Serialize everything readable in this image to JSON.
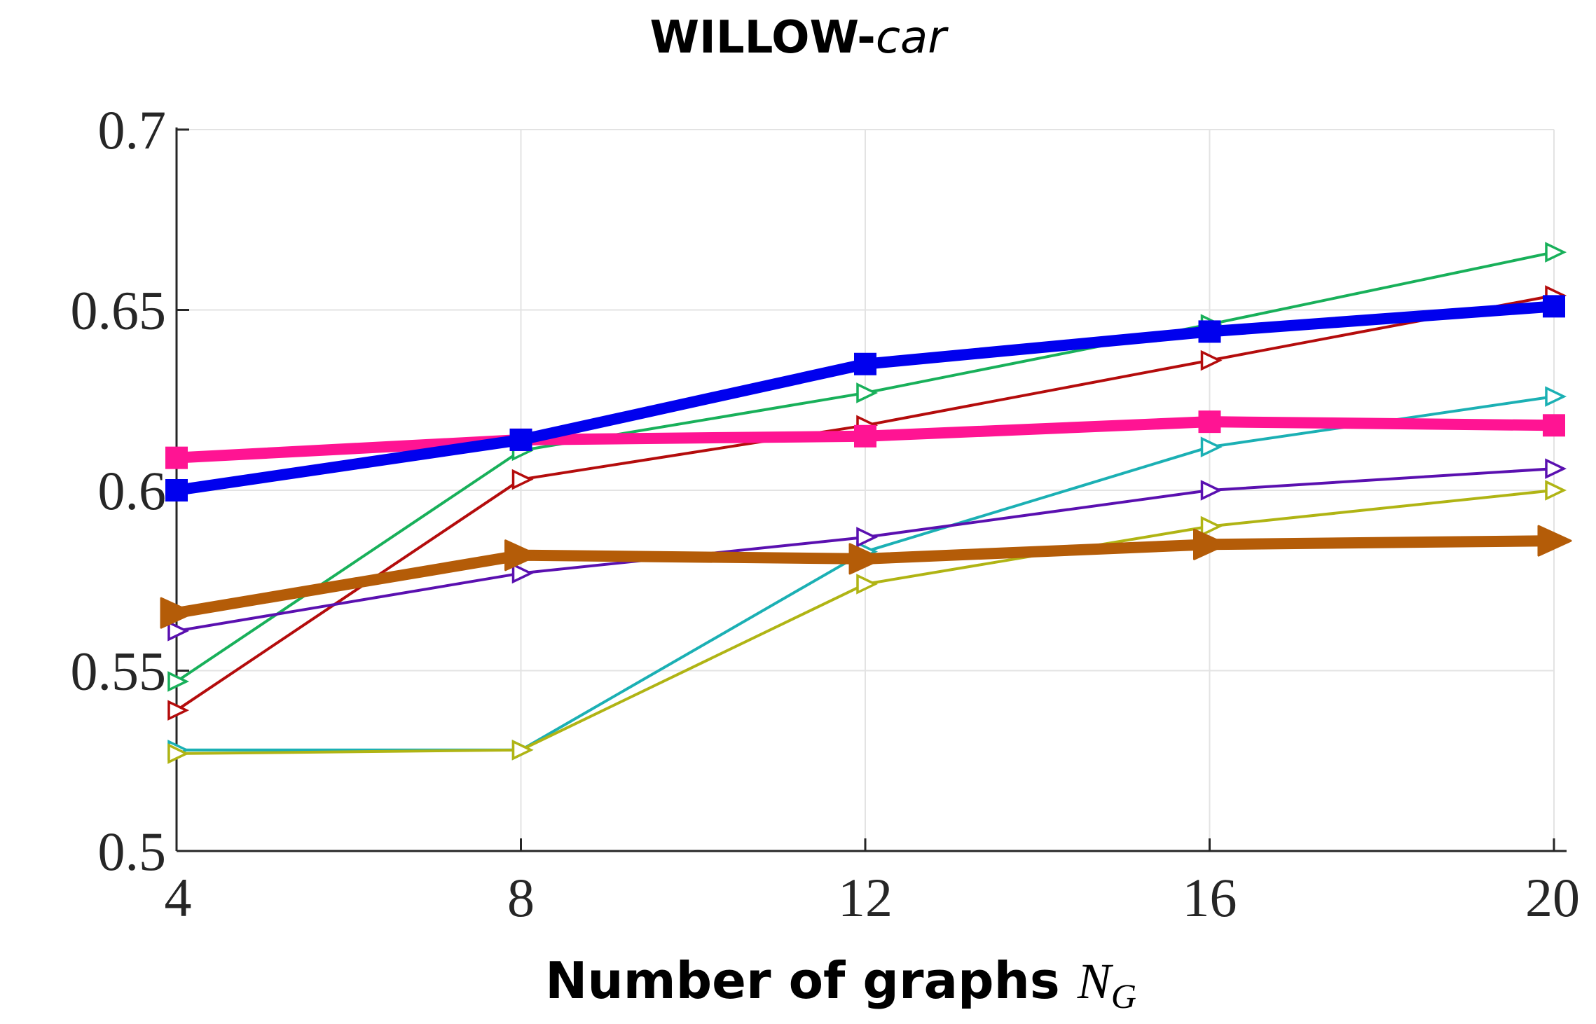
{
  "chart_data": {
    "type": "line",
    "title": "WILLOW-",
    "title_italic": "car",
    "xlabel": "Number of graphs ",
    "xlabel_symbol": "N",
    "xlabel_subscript": "G",
    "ylabel": "",
    "x": [
      4,
      8,
      12,
      16,
      20
    ],
    "xticks": [
      "4",
      "8",
      "12",
      "16",
      "20"
    ],
    "yticks": [
      "0.5",
      "0.55",
      "0.6",
      "0.65",
      "0.7"
    ],
    "ytick_values": [
      0.5,
      0.55,
      0.6,
      0.65,
      0.7
    ],
    "xlim": [
      4,
      20
    ],
    "ylim": [
      0.5,
      0.7
    ],
    "grid": true,
    "series": [
      {
        "name": "series-green",
        "color": "#18b05a",
        "marker": "triangle-right-open",
        "weight": "thin",
        "values": [
          0.547,
          0.611,
          0.627,
          0.646,
          0.666
        ]
      },
      {
        "name": "series-red",
        "color": "#b40c0c",
        "marker": "triangle-right-open",
        "weight": "thin",
        "values": [
          0.539,
          0.603,
          0.618,
          0.636,
          0.654
        ]
      },
      {
        "name": "series-cyan",
        "color": "#1bb0b4",
        "marker": "triangle-right-open",
        "weight": "thin",
        "values": [
          0.528,
          0.528,
          0.583,
          0.612,
          0.626
        ]
      },
      {
        "name": "series-purple",
        "color": "#5a10b0",
        "marker": "triangle-right-open",
        "weight": "thin",
        "values": [
          0.561,
          0.577,
          0.587,
          0.6,
          0.606
        ]
      },
      {
        "name": "series-olive",
        "color": "#b0b414",
        "marker": "triangle-right-open",
        "weight": "thin",
        "values": [
          0.527,
          0.528,
          0.574,
          0.59,
          0.6
        ]
      },
      {
        "name": "series-orange",
        "color": "#b45c08",
        "marker": "triangle-right-filled",
        "weight": "thick",
        "values": [
          0.566,
          0.582,
          0.581,
          0.585,
          0.586
        ]
      },
      {
        "name": "series-pink",
        "color": "#ff1493",
        "marker": "square-filled",
        "weight": "thick",
        "values": [
          0.609,
          0.614,
          0.615,
          0.619,
          0.618
        ]
      },
      {
        "name": "series-blue",
        "color": "#0000ee",
        "marker": "square-filled",
        "weight": "thick",
        "values": [
          0.6,
          0.614,
          0.635,
          0.644,
          0.651
        ]
      }
    ]
  }
}
